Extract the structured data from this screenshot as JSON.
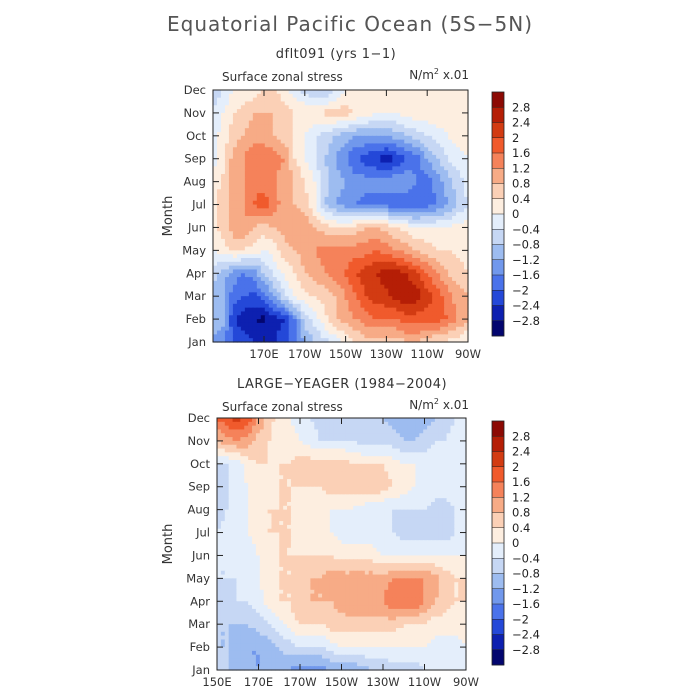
{
  "title": "Equatorial Pacific Ocean (5S−5N)",
  "colorbar_levels": [
    "2.8",
    "2.4",
    "2",
    "1.6",
    "1.2",
    "0.8",
    "0.4",
    "0",
    "−0.4",
    "−0.8",
    "−1.2",
    "−1.6",
    "−2",
    "−2.4",
    "−2.8"
  ],
  "colorbar_colors": [
    "#8c0a04",
    "#b51e06",
    "#d23b12",
    "#f05a2c",
    "#f5825a",
    "#f7ab86",
    "#fbd0b6",
    "#fdeee0",
    "#e4eefb",
    "#c6d7f4",
    "#9dbcf0",
    "#7198ec",
    "#4a72ea",
    "#2448d8",
    "#0d20b0",
    "#03066f"
  ],
  "chart_data": [
    {
      "type": "heatmap",
      "subtitle": "dflt091 (yrs 1−1)",
      "variable_label": "Surface zonal stress",
      "units_label": "N/m",
      "units_sup": "2",
      "units_scale": " x.01",
      "xlabel": "",
      "ylabel": "Month",
      "xlim": [
        145,
        270
      ],
      "x_ticks": [
        {
          "v": 170,
          "label": "170E"
        },
        {
          "v": 190,
          "label": "170W"
        },
        {
          "v": 210,
          "label": "150W"
        },
        {
          "v": 230,
          "label": "130W"
        },
        {
          "v": 250,
          "label": "110W"
        },
        {
          "v": 270,
          "label": "90W"
        }
      ],
      "y_ticks": [
        "Jan",
        "Feb",
        "Mar",
        "Apr",
        "May",
        "Jun",
        "Jul",
        "Aug",
        "Sep",
        "Oct",
        "Nov",
        "Dec"
      ],
      "x": [
        145,
        150,
        155,
        160,
        165,
        170,
        175,
        180,
        185,
        190,
        195,
        200,
        205,
        210,
        215,
        220,
        225,
        230,
        235,
        240,
        245,
        250,
        255,
        260,
        265,
        270
      ],
      "y": [
        1,
        2,
        3,
        4,
        5,
        6,
        7,
        8,
        9,
        10,
        11,
        12
      ],
      "z": [
        [
          -1.3,
          -1.5,
          -2.0,
          -2.2,
          -2.4,
          -2.5,
          -2.4,
          -2.2,
          -1.8,
          -1.2,
          -0.8,
          -0.5,
          -0.3,
          0.1,
          0.4,
          0.6,
          0.6,
          0.6,
          0.6,
          0.8,
          0.8,
          0.6,
          0.4,
          0.3,
          0.2,
          0.0
        ],
        [
          -0.8,
          -1.0,
          -2.4,
          -2.6,
          -2.8,
          -2.9,
          -2.6,
          -2.4,
          -1.6,
          -0.6,
          -0.2,
          0.3,
          0.8,
          1.0,
          1.2,
          1.4,
          1.6,
          1.6,
          1.6,
          1.8,
          1.8,
          1.8,
          1.8,
          1.6,
          1.2,
          0.8
        ],
        [
          -1.0,
          -1.2,
          -1.8,
          -2.0,
          -2.1,
          -1.8,
          -1.2,
          -0.5,
          0.0,
          0.3,
          0.4,
          0.6,
          0.8,
          1.2,
          1.6,
          2.0,
          2.2,
          2.3,
          2.6,
          2.8,
          2.6,
          2.2,
          1.8,
          1.4,
          1.0,
          0.8
        ],
        [
          -0.6,
          -1.0,
          -1.4,
          -1.6,
          -1.4,
          -0.8,
          -0.3,
          0.1,
          0.4,
          0.8,
          1.0,
          1.2,
          1.4,
          1.6,
          2.0,
          2.2,
          2.4,
          2.6,
          2.6,
          2.4,
          2.0,
          1.6,
          1.2,
          0.8,
          0.6,
          0.4
        ],
        [
          0.0,
          0.2,
          0.5,
          0.4,
          0.2,
          0.0,
          0.2,
          0.6,
          0.8,
          1.0,
          1.2,
          1.4,
          1.4,
          1.4,
          1.4,
          1.4,
          1.6,
          1.4,
          1.2,
          1.0,
          0.8,
          0.6,
          0.4,
          0.4,
          0.3,
          0.2
        ],
        [
          0.2,
          0.6,
          1.0,
          1.2,
          0.8,
          0.6,
          0.8,
          1.0,
          1.2,
          1.2,
          0.8,
          0.6,
          0.4,
          0.4,
          0.6,
          0.8,
          0.8,
          0.6,
          0.4,
          0.2,
          0.0,
          0.0,
          0.0,
          0.0,
          0.2,
          0.2
        ],
        [
          0.2,
          0.6,
          1.0,
          1.2,
          1.6,
          1.9,
          1.4,
          1.0,
          0.8,
          0.6,
          0.0,
          -0.8,
          -1.2,
          -1.4,
          -1.6,
          -1.8,
          -1.8,
          -1.8,
          -2.0,
          -2.0,
          -2.0,
          -1.8,
          -1.6,
          -1.2,
          -0.8,
          -0.4
        ],
        [
          0.2,
          0.5,
          1.0,
          1.2,
          1.4,
          1.4,
          1.2,
          1.0,
          0.8,
          0.4,
          0.0,
          -0.6,
          -1.0,
          -1.2,
          -1.4,
          -1.4,
          -1.4,
          -1.4,
          -1.2,
          -1.2,
          -1.6,
          -1.8,
          -1.4,
          -1.0,
          -0.6,
          -0.2
        ],
        [
          -0.2,
          0.2,
          1.0,
          1.2,
          1.6,
          1.6,
          1.4,
          1.2,
          0.4,
          0.0,
          -0.4,
          -0.8,
          -1.2,
          -1.6,
          -2.0,
          -2.2,
          -2.4,
          -2.6,
          -2.4,
          -2.0,
          -1.8,
          -1.2,
          -0.8,
          -0.4,
          -0.2,
          0.0
        ],
        [
          -0.2,
          0.2,
          0.6,
          0.8,
          1.0,
          1.0,
          0.8,
          0.6,
          0.3,
          0.0,
          -0.4,
          -0.6,
          -0.8,
          -1.0,
          -1.2,
          -1.2,
          -1.2,
          -1.2,
          -1.0,
          -0.8,
          -0.6,
          -0.4,
          -0.2,
          0.0,
          0.2,
          0.3
        ],
        [
          -0.4,
          0.0,
          0.4,
          0.6,
          0.8,
          0.8,
          0.8,
          0.6,
          0.4,
          0.4,
          0.4,
          0.5,
          0.6,
          0.6,
          0.4,
          0.2,
          0.0,
          0.0,
          0.0,
          0.2,
          0.3,
          0.3,
          0.3,
          0.3,
          0.3,
          0.3
        ],
        [
          -0.6,
          -0.4,
          0.0,
          0.0,
          0.2,
          0.4,
          0.4,
          0.2,
          -0.2,
          -0.6,
          -0.8,
          -0.8,
          -0.4,
          0.0,
          0.0,
          0.2,
          0.2,
          0.3,
          0.3,
          0.3,
          0.3,
          0.3,
          0.3,
          0.3,
          0.3,
          0.3
        ]
      ],
      "zlim": [
        -2.8,
        2.8
      ]
    },
    {
      "type": "heatmap",
      "subtitle": "LARGE−YEAGER (1984−2004)",
      "variable_label": "Surface zonal stress",
      "units_label": "N/m",
      "units_sup": "2",
      "units_scale": " x.01",
      "xlabel": "",
      "ylabel": "Month",
      "xlim": [
        150,
        270
      ],
      "x_ticks": [
        {
          "v": 150,
          "label": "150E"
        },
        {
          "v": 170,
          "label": "170E"
        },
        {
          "v": 190,
          "label": "170W"
        },
        {
          "v": 210,
          "label": "150W"
        },
        {
          "v": 230,
          "label": "130W"
        },
        {
          "v": 250,
          "label": "110W"
        },
        {
          "v": 270,
          "label": "90W"
        }
      ],
      "y_ticks": [
        "Jan",
        "Feb",
        "Mar",
        "Apr",
        "May",
        "Jun",
        "Jul",
        "Aug",
        "Sep",
        "Oct",
        "Nov",
        "Dec"
      ],
      "x": [
        150,
        155,
        160,
        165,
        170,
        175,
        180,
        185,
        190,
        195,
        200,
        205,
        210,
        215,
        220,
        225,
        230,
        235,
        240,
        245,
        250,
        255,
        260,
        265,
        270
      ],
      "y": [
        1,
        2,
        3,
        4,
        5,
        6,
        7,
        8,
        9,
        10,
        11,
        12
      ],
      "z": [
        [
          -0.6,
          -0.8,
          -1.0,
          -1.2,
          -1.2,
          -1.0,
          -1.0,
          -1.2,
          -1.4,
          -1.4,
          -1.4,
          -1.2,
          -1.2,
          -1.2,
          -1.0,
          -0.8,
          -0.8,
          -0.6,
          -0.6,
          -0.6,
          -0.4,
          -0.4,
          -0.3,
          -0.2,
          0.0
        ],
        [
          -0.8,
          -0.8,
          -1.0,
          -1.2,
          -1.2,
          -1.0,
          -0.8,
          -0.6,
          -0.4,
          -0.4,
          -0.4,
          -0.2,
          0.0,
          0.0,
          0.0,
          0.0,
          0.0,
          0.0,
          0.0,
          0.0,
          0.0,
          -0.2,
          -0.2,
          -0.2,
          0.0
        ],
        [
          -0.8,
          -0.8,
          -0.8,
          -0.8,
          -0.6,
          -0.4,
          -0.2,
          0.2,
          0.4,
          0.4,
          0.4,
          0.6,
          0.6,
          0.6,
          0.6,
          0.6,
          0.6,
          0.6,
          0.4,
          0.4,
          0.4,
          0.2,
          0.2,
          0.2,
          0.2
        ],
        [
          -0.6,
          -0.6,
          -0.4,
          -0.4,
          -0.2,
          0.2,
          0.4,
          0.4,
          0.8,
          0.8,
          0.8,
          0.8,
          1.0,
          1.2,
          1.2,
          1.2,
          1.2,
          1.6,
          1.6,
          1.6,
          1.2,
          0.8,
          0.6,
          0.4,
          0.4
        ],
        [
          -0.4,
          -0.4,
          -0.4,
          -0.2,
          0.0,
          0.2,
          0.4,
          0.4,
          0.6,
          0.8,
          0.8,
          1.0,
          1.0,
          1.0,
          1.0,
          1.0,
          1.0,
          1.2,
          1.2,
          1.2,
          1.2,
          1.0,
          0.6,
          0.4,
          0.4
        ],
        [
          -0.4,
          -0.4,
          -0.2,
          -0.2,
          0.0,
          0.2,
          0.4,
          0.4,
          0.4,
          0.4,
          0.4,
          0.4,
          0.2,
          0.2,
          0.2,
          0.2,
          0.0,
          0.0,
          0.0,
          0.0,
          0.0,
          0.0,
          0.0,
          0.0,
          0.0
        ],
        [
          -0.4,
          -0.2,
          -0.2,
          0.0,
          0.2,
          0.4,
          0.4,
          0.4,
          0.2,
          0.0,
          0.0,
          0.0,
          -0.2,
          -0.2,
          -0.2,
          -0.2,
          -0.4,
          -0.4,
          -0.6,
          -0.6,
          -0.6,
          -0.6,
          -0.6,
          -0.4,
          -0.2
        ],
        [
          -0.6,
          -0.4,
          -0.2,
          0.0,
          0.2,
          0.4,
          0.4,
          0.4,
          0.2,
          0.2,
          0.0,
          0.0,
          0.0,
          0.0,
          -0.2,
          -0.4,
          -0.4,
          -0.4,
          -0.4,
          -0.4,
          -0.4,
          -0.6,
          -0.6,
          -0.4,
          -0.2
        ],
        [
          -0.8,
          -0.4,
          -0.2,
          0.0,
          0.2,
          0.2,
          0.4,
          0.4,
          0.4,
          0.4,
          0.4,
          0.6,
          0.6,
          0.6,
          0.8,
          0.8,
          0.6,
          0.4,
          0.2,
          0.0,
          0.0,
          -0.2,
          -0.2,
          -0.2,
          -0.2
        ],
        [
          -0.4,
          -0.4,
          -0.2,
          0.2,
          0.4,
          0.4,
          0.4,
          0.4,
          0.6,
          0.6,
          0.6,
          0.6,
          0.6,
          0.4,
          0.4,
          0.4,
          0.4,
          0.2,
          0.0,
          0.0,
          -0.2,
          -0.2,
          -0.2,
          -0.2,
          -0.2
        ],
        [
          0.8,
          1.0,
          1.2,
          1.0,
          0.6,
          0.4,
          0.2,
          0.2,
          0.0,
          -0.2,
          -0.4,
          -0.4,
          -0.4,
          -0.4,
          -0.6,
          -0.6,
          -0.6,
          -0.6,
          -0.8,
          -0.8,
          -0.6,
          -0.4,
          -0.4,
          -0.2,
          -0.2
        ],
        [
          1.6,
          2.0,
          2.2,
          1.8,
          1.2,
          0.6,
          0.2,
          0.0,
          -0.2,
          -0.4,
          -0.6,
          -0.6,
          -0.6,
          -0.6,
          -0.8,
          -0.8,
          -0.8,
          -1.0,
          -1.0,
          -1.2,
          -1.0,
          -0.8,
          -0.6,
          -0.4,
          -0.4
        ]
      ],
      "zlim": [
        -2.8,
        2.8
      ]
    }
  ]
}
